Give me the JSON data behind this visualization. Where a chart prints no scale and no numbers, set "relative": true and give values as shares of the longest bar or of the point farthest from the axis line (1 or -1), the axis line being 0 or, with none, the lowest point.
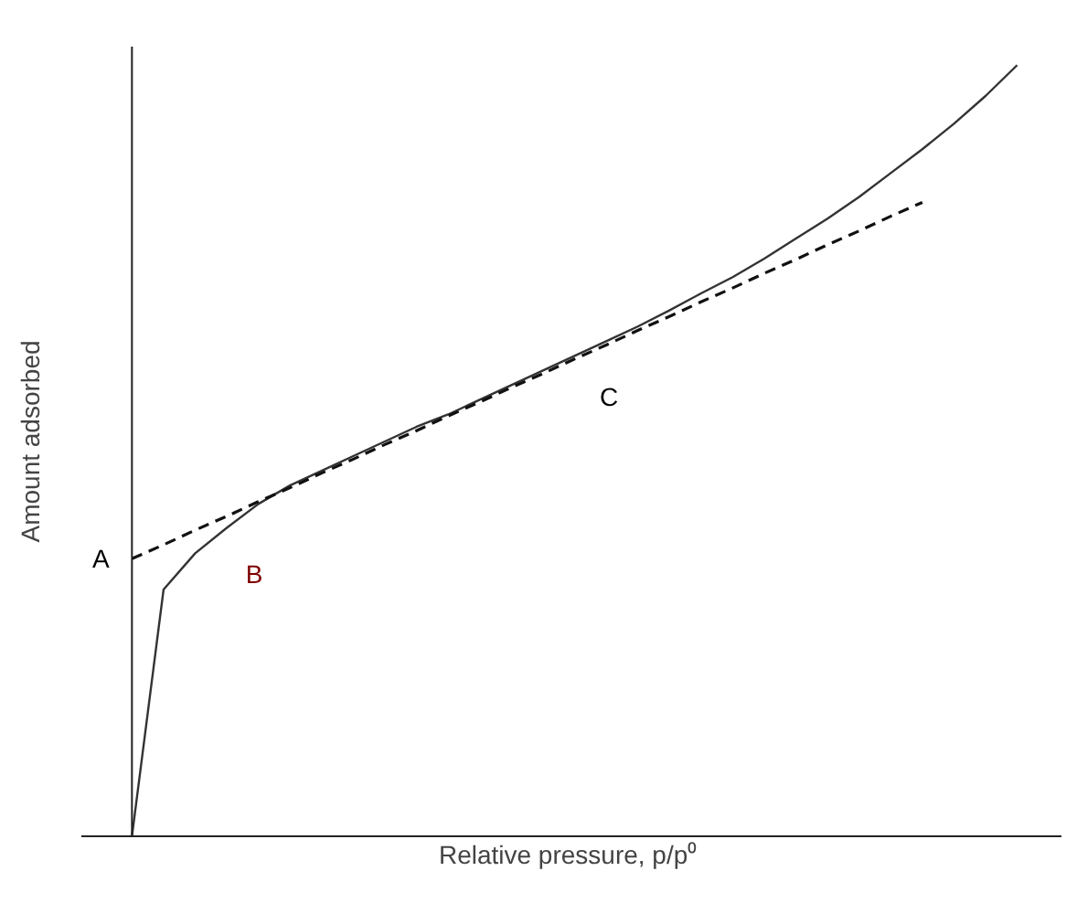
{
  "chart_data": {
    "type": "line",
    "relative": true,
    "xlabel": "Relative pressure,  p/p⁰",
    "ylabel": "Amount adsorbed",
    "categories": [
      null,
      null,
      null,
      null,
      null,
      null,
      null,
      null,
      null,
      null,
      null,
      null,
      null,
      null,
      null,
      null,
      null,
      null,
      null,
      null,
      null,
      null,
      null,
      null,
      null,
      null,
      null,
      null,
      null
    ],
    "series": [
      {
        "color": "#333333",
        "line_style": "solid",
        "values": [
          0,
          0.32,
          0.367,
          0.4,
          0.431,
          0.455,
          0.474,
          0.493,
          0.512,
          0.531,
          0.547,
          0.566,
          0.585,
          0.604,
          0.623,
          0.642,
          0.661,
          0.682,
          0.704,
          0.725,
          0.749,
          0.775,
          0.801,
          0.829,
          0.86,
          0.891,
          0.924,
          0.96,
          1.0
        ]
      },
      {
        "color": "#111111",
        "line_style": "dashed",
        "values": [
          0.36,
          0.378,
          0.397,
          0.415,
          0.434,
          0.452,
          0.471,
          0.489,
          0.508,
          0.526,
          0.545,
          0.563,
          0.582,
          0.6,
          0.619,
          0.637,
          0.656,
          0.674,
          0.693,
          0.711,
          0.73,
          0.748,
          0.767,
          0.785,
          0.804,
          0.822,
          null,
          null,
          null
        ]
      }
    ],
    "annotations": [
      "A",
      "B",
      "C"
    ],
    "grid": false
  }
}
